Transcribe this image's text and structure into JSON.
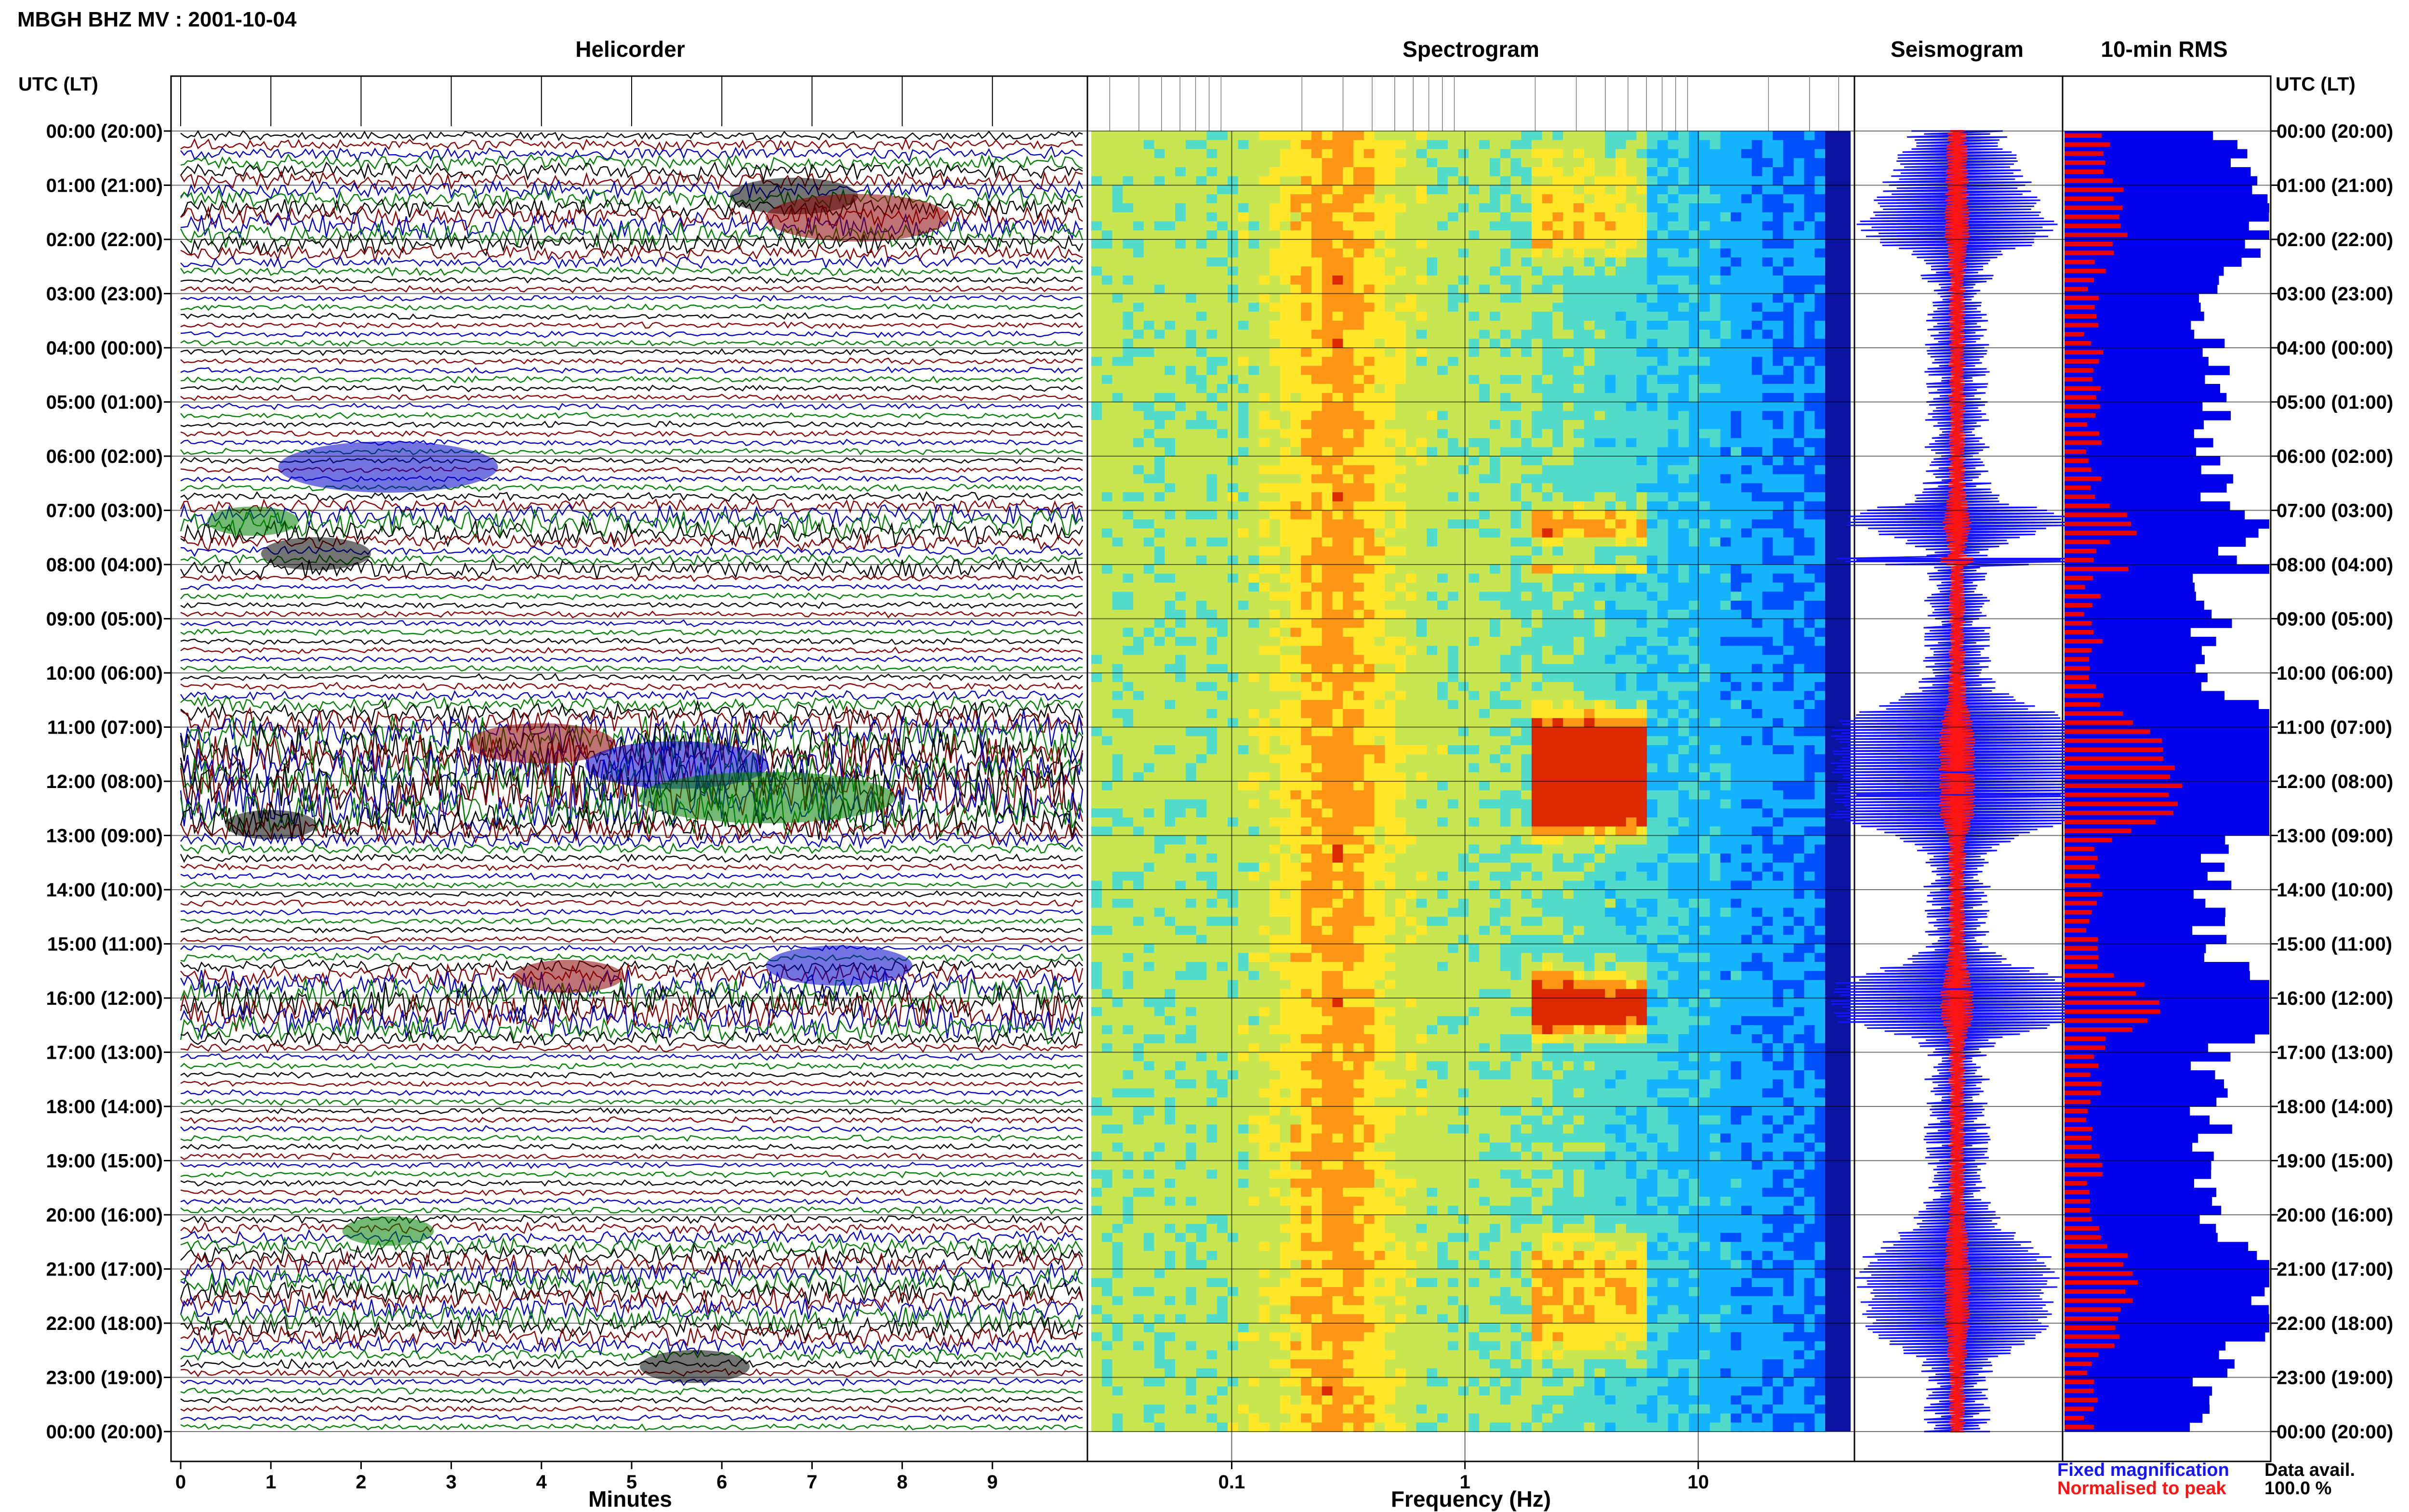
{
  "chart_data": {
    "title": "MBGH BHZ MV : 2001-10-04",
    "panels": [
      {
        "type": "line",
        "title": "Helicorder",
        "xlabel": "Minutes",
        "xlim": [
          0,
          10
        ],
        "xticks": [
          "0",
          "1",
          "2",
          "3",
          "4",
          "5",
          "6",
          "7",
          "8",
          "9"
        ],
        "trace_colors": [
          "#000000",
          "#8b0000",
          "#0000c8",
          "#008000"
        ]
      },
      {
        "type": "heatmap",
        "title": "Spectrogram",
        "xlabel": "Frequency (Hz)",
        "xscale": "log",
        "xlim": [
          0.025,
          45
        ],
        "xticks": [
          "0.1",
          "1",
          "10"
        ],
        "colormap": [
          "#0a14a0",
          "#0050ff",
          "#14b4ff",
          "#50dcc8",
          "#c8e650",
          "#ffe628",
          "#ff9614",
          "#dc2800"
        ],
        "spectral_peaks_hz": [
          0.25,
          0.4,
          3.0
        ]
      },
      {
        "type": "line",
        "title": "Seismogram",
        "legend": [
          {
            "label": "Fixed magnification",
            "color": "#1414ff"
          },
          {
            "label": "Normalised to peak",
            "color": "#ff1414"
          }
        ],
        "events_utc": [
          "07:55",
          "11:50",
          "12:15",
          "15:50"
        ]
      },
      {
        "type": "bar",
        "title": "10-min RMS",
        "orientation": "horizontal",
        "series": [
          {
            "name": "Fixed magnification",
            "color": "#0000ee"
          },
          {
            "name": "Normalised to peak",
            "color": "#ee0000"
          }
        ]
      }
    ],
    "y_axis": {
      "title": "UTC (LT)",
      "ticks": [
        "00:00 (20:00)",
        "01:00 (21:00)",
        "02:00 (22:00)",
        "03:00 (23:00)",
        "04:00 (00:00)",
        "05:00 (01:00)",
        "06:00 (02:00)",
        "07:00 (03:00)",
        "08:00 (04:00)",
        "09:00 (05:00)",
        "10:00 (06:00)",
        "11:00 (07:00)",
        "12:00 (08:00)",
        "13:00 (09:00)",
        "14:00 (10:00)",
        "15:00 (11:00)",
        "16:00 (12:00)",
        "17:00 (13:00)",
        "18:00 (14:00)",
        "19:00 (15:00)",
        "20:00 (16:00)",
        "21:00 (17:00)",
        "22:00 (18:00)",
        "23:00 (19:00)",
        "00:00 (20:00)"
      ]
    },
    "data_availability": {
      "label": "Data avail.",
      "value": "100.0 %"
    }
  }
}
